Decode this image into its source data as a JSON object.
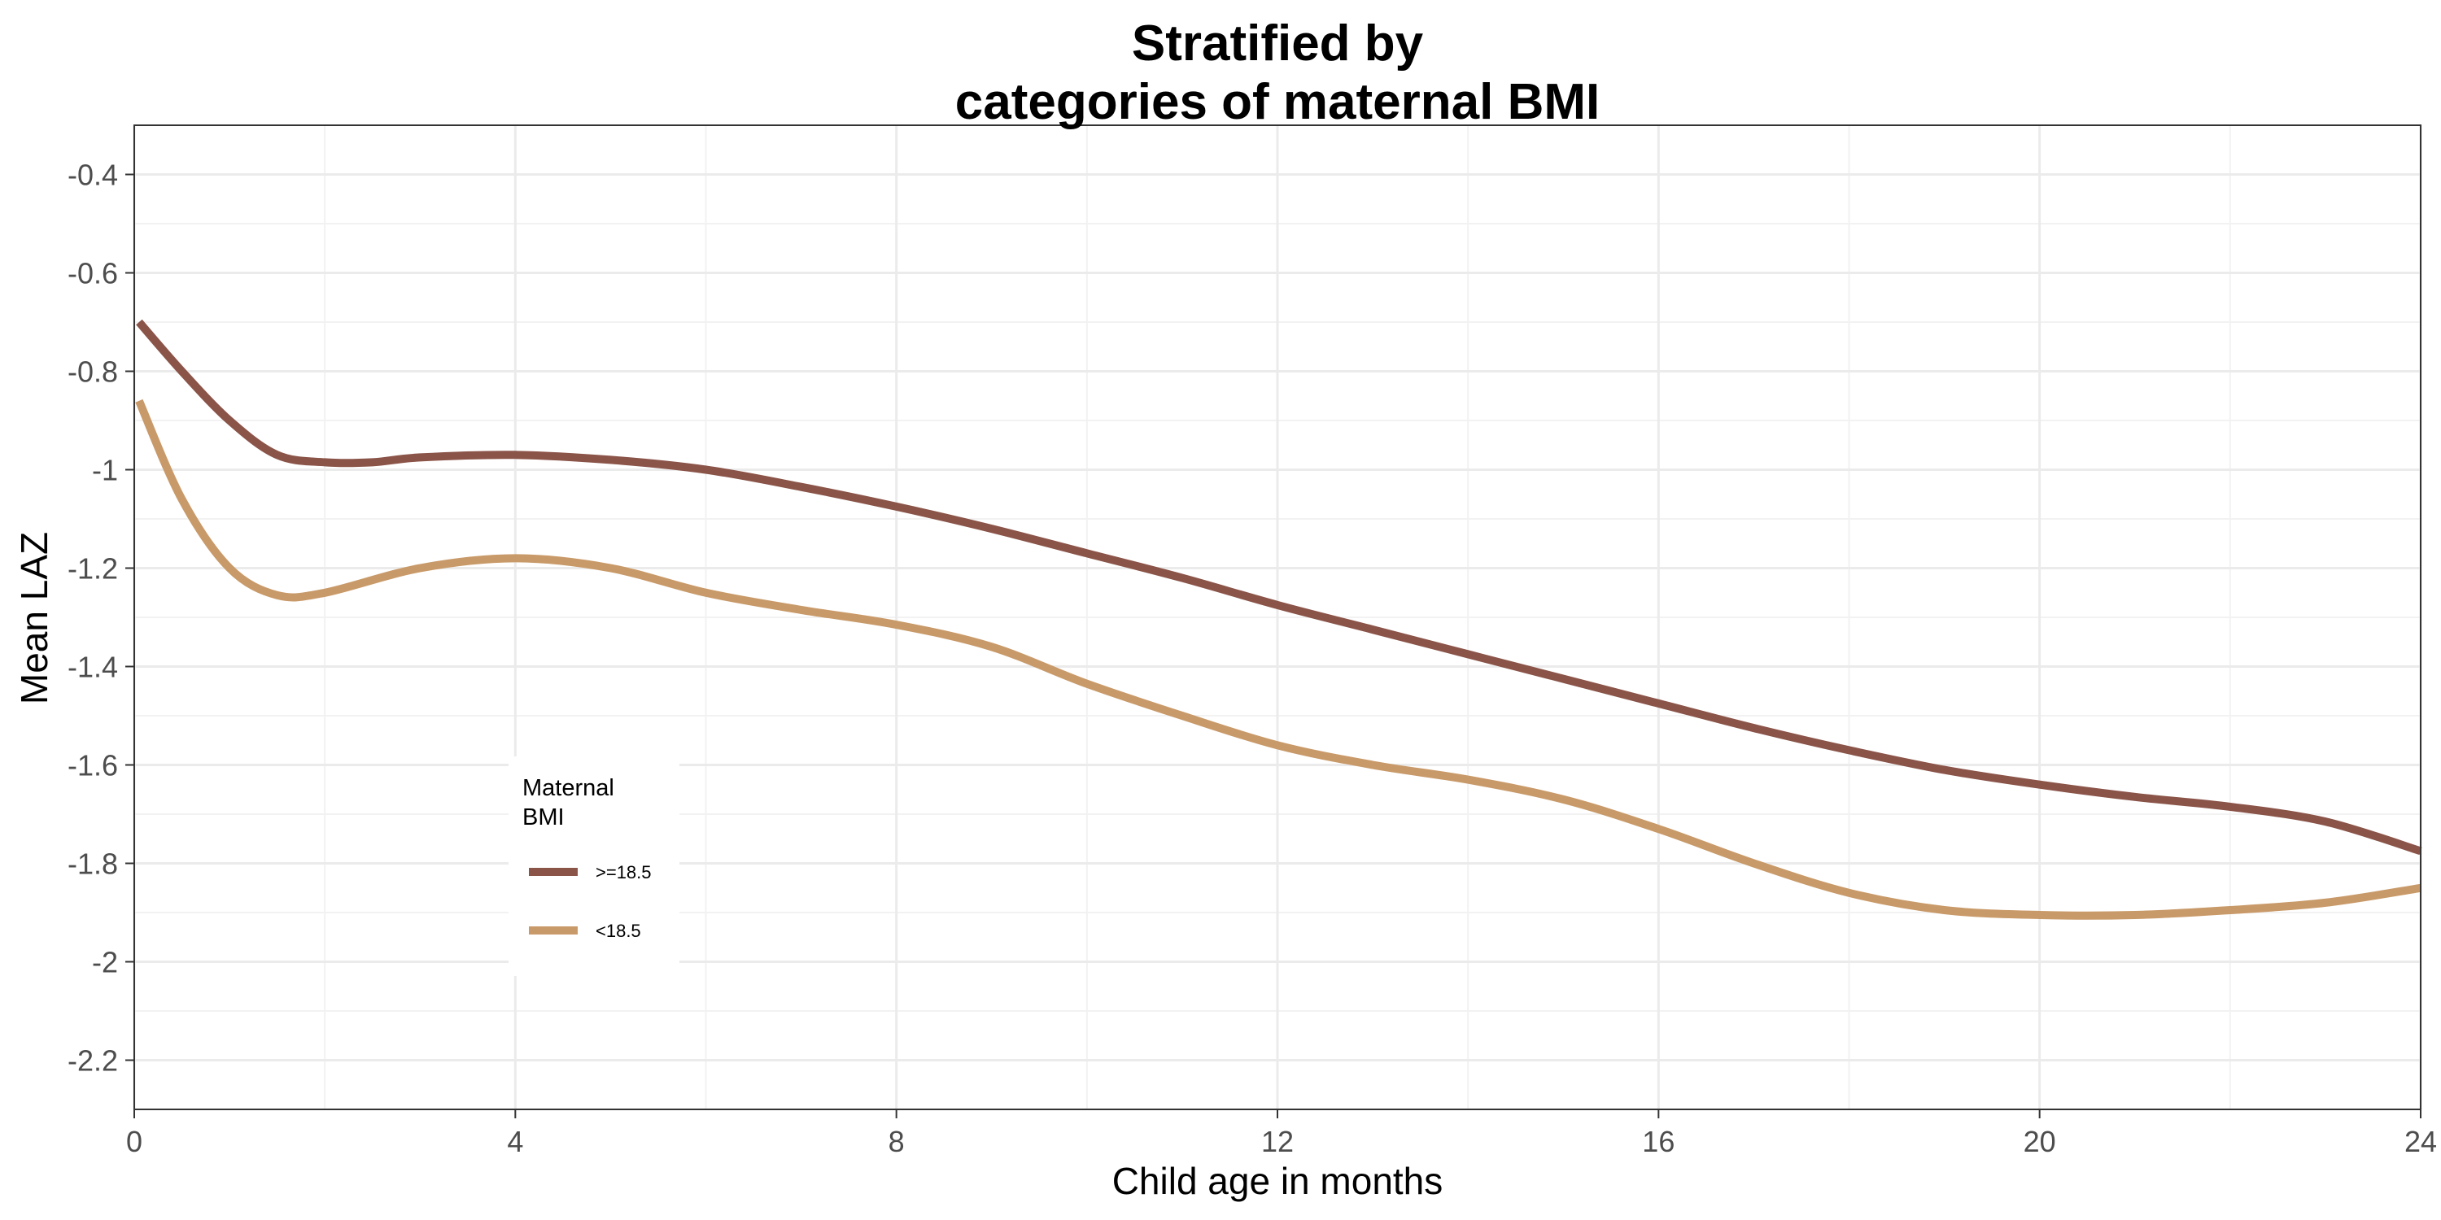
{
  "chart_data": {
    "type": "line",
    "title_lines": [
      "Stratified by",
      "categories of maternal BMI"
    ],
    "xlabel": "Child age in months",
    "ylabel": "Mean LAZ",
    "xlim": [
      0,
      24
    ],
    "ylim": [
      -2.3,
      -0.3
    ],
    "x_ticks": [
      0,
      4,
      8,
      12,
      16,
      20,
      24
    ],
    "x_tick_labels": [
      "0",
      "4",
      "8",
      "12",
      "16",
      "20",
      "24"
    ],
    "y_ticks": [
      -0.4,
      -0.6,
      -0.8,
      -1.0,
      -1.2,
      -1.4,
      -1.6,
      -1.8,
      -2.0,
      -2.2
    ],
    "y_tick_labels": [
      "-0.4",
      "-0.6",
      "-0.8",
      "-1",
      "-1.2",
      "-1.4",
      "-1.6",
      "-1.8",
      "-2",
      "-2.2"
    ],
    "grid": true,
    "legend": {
      "title_lines": [
        "Maternal",
        "BMI"
      ],
      "placement": "inside-lower-left"
    },
    "series": [
      {
        "name": ">=18.5",
        "color": "#8b5449",
        "x": [
          0.05,
          0.5,
          1,
          1.5,
          2,
          2.5,
          3,
          4,
          5,
          6,
          7,
          8,
          9,
          10,
          11,
          12,
          13,
          14,
          15,
          16,
          17,
          18,
          19,
          20,
          21,
          22,
          23,
          24
        ],
        "y": [
          -0.7,
          -0.8,
          -0.9,
          -0.97,
          -0.985,
          -0.985,
          -0.975,
          -0.97,
          -0.98,
          -1.0,
          -1.035,
          -1.075,
          -1.12,
          -1.17,
          -1.22,
          -1.275,
          -1.325,
          -1.375,
          -1.425,
          -1.475,
          -1.525,
          -1.57,
          -1.61,
          -1.64,
          -1.665,
          -1.685,
          -1.715,
          -1.775
        ]
      },
      {
        "name": "<18.5",
        "color": "#c99a69",
        "x": [
          0.05,
          0.5,
          1,
          1.5,
          2,
          3,
          4,
          5,
          6,
          7,
          8,
          9,
          10,
          11,
          12,
          13,
          14,
          15,
          16,
          17,
          18,
          19,
          20,
          21,
          22,
          23,
          24
        ],
        "y": [
          -0.86,
          -1.06,
          -1.2,
          -1.255,
          -1.25,
          -1.2,
          -1.18,
          -1.2,
          -1.25,
          -1.285,
          -1.315,
          -1.36,
          -1.435,
          -1.5,
          -1.56,
          -1.6,
          -1.63,
          -1.67,
          -1.73,
          -1.8,
          -1.86,
          -1.895,
          -1.905,
          -1.905,
          -1.895,
          -1.88,
          -1.85
        ]
      }
    ]
  }
}
